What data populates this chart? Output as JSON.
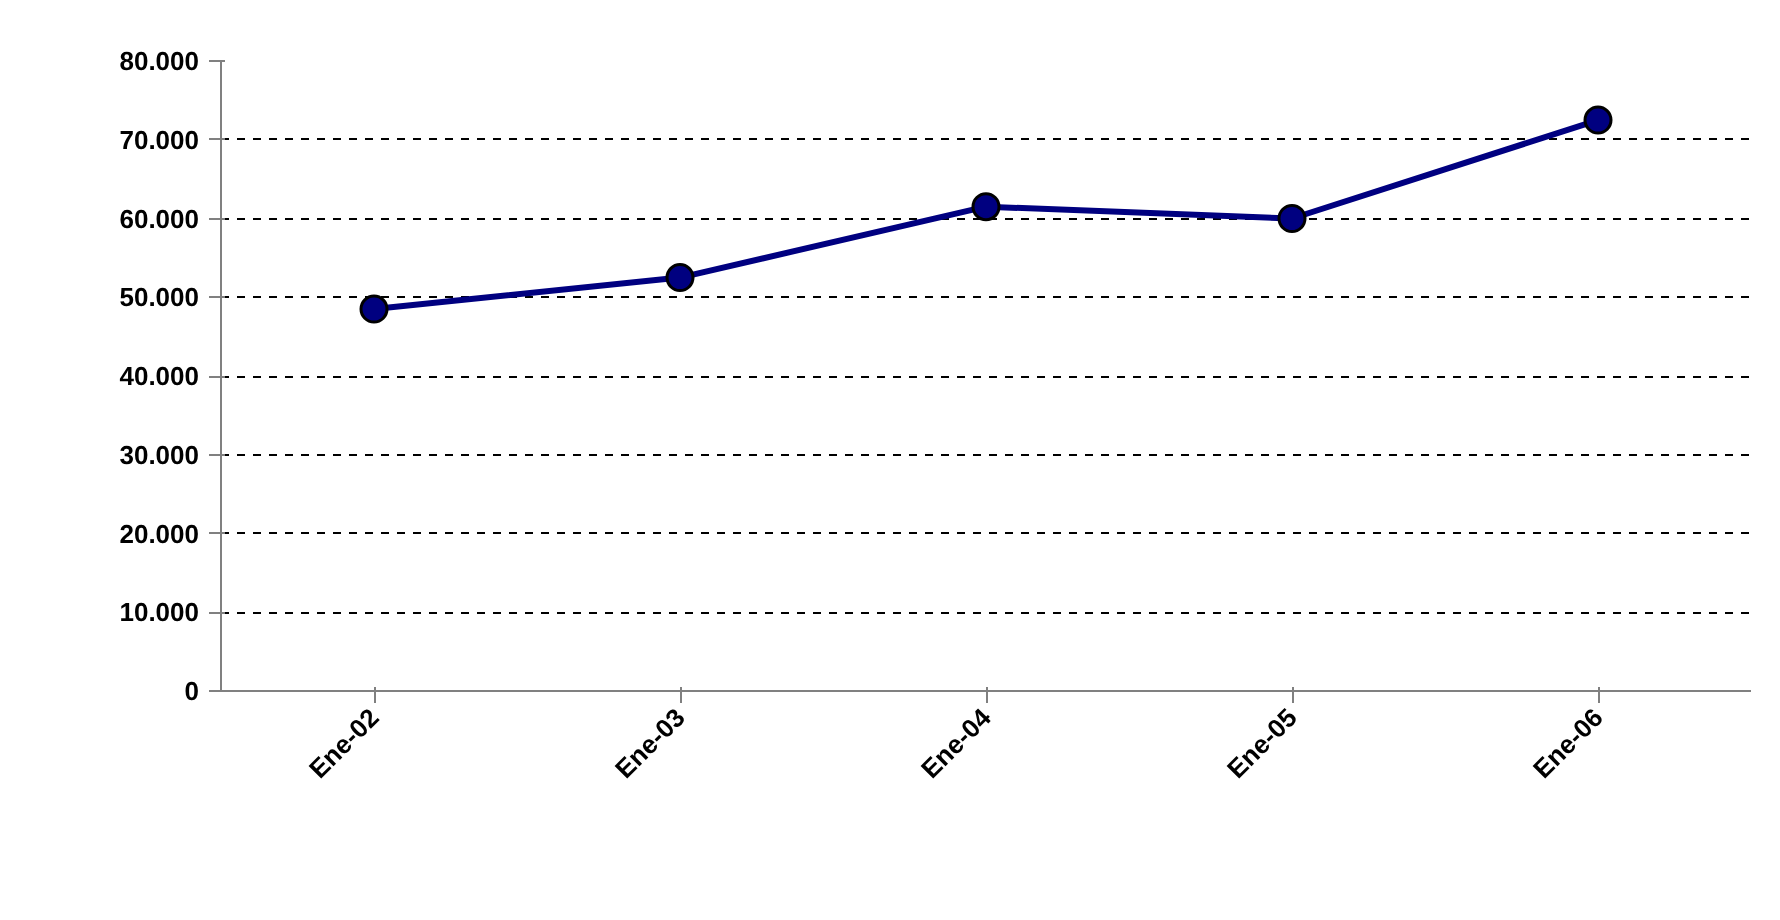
{
  "chart_data": {
    "type": "line",
    "categories": [
      "Ene-02",
      "Ene-03",
      "Ene-04",
      "Ene-05",
      "Ene-06"
    ],
    "series": [
      {
        "color": "#000080",
        "values": [
          48500,
          52500,
          61500,
          60000,
          72500
        ]
      }
    ],
    "ylim": [
      0,
      80000
    ],
    "yticks": [
      {
        "value": 0,
        "label": "0"
      },
      {
        "value": 10000,
        "label": "10.000"
      },
      {
        "value": 20000,
        "label": "20.000"
      },
      {
        "value": 30000,
        "label": "30.000"
      },
      {
        "value": 40000,
        "label": "40.000"
      },
      {
        "value": 50000,
        "label": "50.000"
      },
      {
        "value": 60000,
        "label": "60.000"
      },
      {
        "value": 70000,
        "label": "70.000"
      },
      {
        "value": 80000,
        "label": "80.000"
      }
    ],
    "grid": "y",
    "marker": "circle",
    "line_style": "solid"
  }
}
